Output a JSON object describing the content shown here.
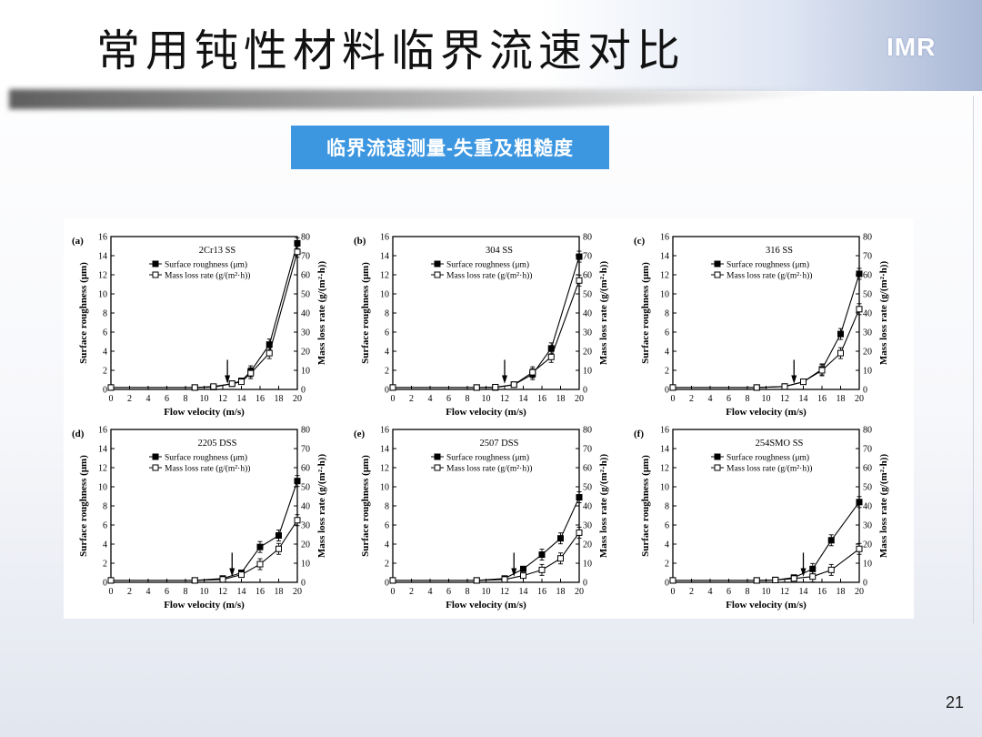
{
  "slide": {
    "title": "常用钝性材料临界流速对比",
    "subtitle": "临界流速测量-失重及粗糙度",
    "logo": "IMR",
    "page_number": "21"
  },
  "chart_data": [
    {
      "type": "line",
      "panel": "(a)",
      "title": "2Cr13 SS",
      "xlabel": "Flow velocity (m/s)",
      "ylabel": "Surface roughness (μm)",
      "y2label": "Mass loss rate (g/(m²·h))",
      "xlim": [
        0,
        20
      ],
      "ylim": [
        0,
        16
      ],
      "y2lim": [
        0,
        80
      ],
      "xticks": [
        0,
        2,
        4,
        6,
        8,
        10,
        12,
        14,
        16,
        18,
        20
      ],
      "yticks": [
        0,
        2,
        4,
        6,
        8,
        10,
        12,
        14,
        16
      ],
      "y2ticks": [
        0,
        10,
        20,
        30,
        40,
        50,
        60,
        70,
        80
      ],
      "critical_velocity": 12.5,
      "series": [
        {
          "name": "Surface roughness (μm)",
          "marker": "filled-square",
          "axis": "left",
          "x": [
            0,
            9,
            11,
            13,
            14,
            15,
            17,
            20
          ],
          "y": [
            0.2,
            0.2,
            0.25,
            0.6,
            0.9,
            1.9,
            4.7,
            15.3
          ]
        },
        {
          "name": "Mass loss rate (g/(m²·h))",
          "marker": "open-square",
          "axis": "right",
          "x": [
            0,
            9,
            11,
            13,
            14,
            15,
            17,
            20
          ],
          "y": [
            1,
            1,
            1.5,
            3,
            4,
            8.5,
            19,
            72
          ]
        }
      ]
    },
    {
      "type": "line",
      "panel": "(b)",
      "title": "304 SS",
      "xlabel": "Flow velocity (m/s)",
      "ylabel": "Surface roughness (μm)",
      "y2label": "Mass loss rate (g/(m²·h))",
      "xlim": [
        0,
        20
      ],
      "ylim": [
        0,
        16
      ],
      "y2lim": [
        0,
        80
      ],
      "xticks": [
        0,
        2,
        4,
        6,
        8,
        10,
        12,
        14,
        16,
        18,
        20
      ],
      "yticks": [
        0,
        2,
        4,
        6,
        8,
        10,
        12,
        14,
        16
      ],
      "y2ticks": [
        0,
        10,
        20,
        30,
        40,
        50,
        60,
        70,
        80
      ],
      "critical_velocity": 12,
      "series": [
        {
          "name": "Surface roughness (μm)",
          "marker": "filled-square",
          "axis": "left",
          "x": [
            0,
            9,
            11,
            13,
            15,
            17,
            20
          ],
          "y": [
            0.2,
            0.2,
            0.2,
            0.5,
            1.6,
            4.3,
            13.9
          ]
        },
        {
          "name": "Mass loss rate (g/(m²·h))",
          "marker": "open-square",
          "axis": "right",
          "x": [
            0,
            9,
            11,
            13,
            15,
            17,
            20
          ],
          "y": [
            1,
            1,
            1.2,
            2.5,
            9,
            17,
            57
          ]
        }
      ]
    },
    {
      "type": "line",
      "panel": "(c)",
      "title": "316 SS",
      "xlabel": "Flow velocity (m/s)",
      "ylabel": "Surface roughness (μm)",
      "y2label": "Mass loss rate (g/(m²·h))",
      "xlim": [
        0,
        20
      ],
      "ylim": [
        0,
        16
      ],
      "y2lim": [
        0,
        80
      ],
      "xticks": [
        0,
        2,
        4,
        6,
        8,
        10,
        12,
        14,
        16,
        18,
        20
      ],
      "yticks": [
        0,
        2,
        4,
        6,
        8,
        10,
        12,
        14,
        16
      ],
      "y2ticks": [
        0,
        10,
        20,
        30,
        40,
        50,
        60,
        70,
        80
      ],
      "critical_velocity": 13,
      "series": [
        {
          "name": "Surface roughness (μm)",
          "marker": "filled-square",
          "axis": "left",
          "x": [
            0,
            9,
            12,
            14,
            16,
            18,
            20
          ],
          "y": [
            0.2,
            0.2,
            0.3,
            0.8,
            2.1,
            5.8,
            12.1
          ]
        },
        {
          "name": "Mass loss rate (g/(m²·h))",
          "marker": "open-square",
          "axis": "right",
          "x": [
            0,
            9,
            12,
            14,
            16,
            18,
            20
          ],
          "y": [
            1,
            1,
            1.5,
            4,
            10,
            19,
            42
          ]
        }
      ]
    },
    {
      "type": "line",
      "panel": "(d)",
      "title": "2205 DSS",
      "xlabel": "Flow velocity (m/s)",
      "ylabel": "Surface roughness (μm)",
      "y2label": "Mass loss rate (g/(m²·h))",
      "xlim": [
        0,
        20
      ],
      "ylim": [
        0,
        16
      ],
      "y2lim": [
        0,
        80
      ],
      "xticks": [
        0,
        2,
        4,
        6,
        8,
        10,
        12,
        14,
        16,
        18,
        20
      ],
      "yticks": [
        0,
        2,
        4,
        6,
        8,
        10,
        12,
        14,
        16
      ],
      "y2ticks": [
        0,
        10,
        20,
        30,
        40,
        50,
        60,
        70,
        80
      ],
      "critical_velocity": 13,
      "series": [
        {
          "name": "Surface roughness (μm)",
          "marker": "filled-square",
          "axis": "left",
          "x": [
            0,
            9,
            12,
            14,
            16,
            18,
            20
          ],
          "y": [
            0.2,
            0.2,
            0.4,
            1.0,
            3.7,
            4.9,
            10.6
          ]
        },
        {
          "name": "Mass loss rate (g/(m²·h))",
          "marker": "open-square",
          "axis": "right",
          "x": [
            0,
            9,
            12,
            14,
            16,
            18,
            20
          ],
          "y": [
            1,
            1,
            1.5,
            4,
            9.5,
            17.5,
            32.5
          ]
        }
      ]
    },
    {
      "type": "line",
      "panel": "(e)",
      "title": "2507 DSS",
      "xlabel": "Flow velocity (m/s)",
      "ylabel": "Surface roughness (μm)",
      "y2label": "Mass loss rate (g/(m²·h))",
      "xlim": [
        0,
        20
      ],
      "ylim": [
        0,
        16
      ],
      "y2lim": [
        0,
        80
      ],
      "xticks": [
        0,
        2,
        4,
        6,
        8,
        10,
        12,
        14,
        16,
        18,
        20
      ],
      "yticks": [
        0,
        2,
        4,
        6,
        8,
        10,
        12,
        14,
        16
      ],
      "y2ticks": [
        0,
        10,
        20,
        30,
        40,
        50,
        60,
        70,
        80
      ],
      "critical_velocity": 13,
      "series": [
        {
          "name": "Surface roughness (μm)",
          "marker": "filled-square",
          "axis": "left",
          "x": [
            0,
            9,
            12,
            14,
            16,
            18,
            20
          ],
          "y": [
            0.2,
            0.2,
            0.4,
            1.4,
            2.9,
            4.6,
            8.9
          ]
        },
        {
          "name": "Mass loss rate (g/(m²·h))",
          "marker": "open-square",
          "axis": "right",
          "x": [
            0,
            9,
            12,
            14,
            16,
            18,
            20
          ],
          "y": [
            1,
            1,
            1.5,
            3.5,
            6.5,
            12.5,
            26
          ]
        }
      ]
    },
    {
      "type": "line",
      "panel": "(f)",
      "title": "254SMO SS",
      "xlabel": "Flow velocity (m/s)",
      "ylabel": "Surface roughness (μm)",
      "y2label": "Mass loss rate (g/(m²·h))",
      "xlim": [
        0,
        20
      ],
      "ylim": [
        0,
        16
      ],
      "y2lim": [
        0,
        80
      ],
      "xticks": [
        0,
        2,
        4,
        6,
        8,
        10,
        12,
        14,
        16,
        18,
        20
      ],
      "yticks": [
        0,
        2,
        4,
        6,
        8,
        10,
        12,
        14,
        16
      ],
      "y2ticks": [
        0,
        10,
        20,
        30,
        40,
        50,
        60,
        70,
        80
      ],
      "critical_velocity": 14,
      "series": [
        {
          "name": "Surface roughness (μm)",
          "marker": "filled-square",
          "axis": "left",
          "x": [
            0,
            9,
            11,
            13,
            15,
            17,
            20
          ],
          "y": [
            0.2,
            0.2,
            0.25,
            0.5,
            1.4,
            4.4,
            8.4
          ]
        },
        {
          "name": "Mass loss rate (g/(m²·h))",
          "marker": "open-square",
          "axis": "right",
          "x": [
            0,
            9,
            11,
            13,
            15,
            17,
            20
          ],
          "y": [
            1,
            1,
            1.2,
            2,
            3,
            6.5,
            17.5
          ]
        }
      ]
    }
  ]
}
